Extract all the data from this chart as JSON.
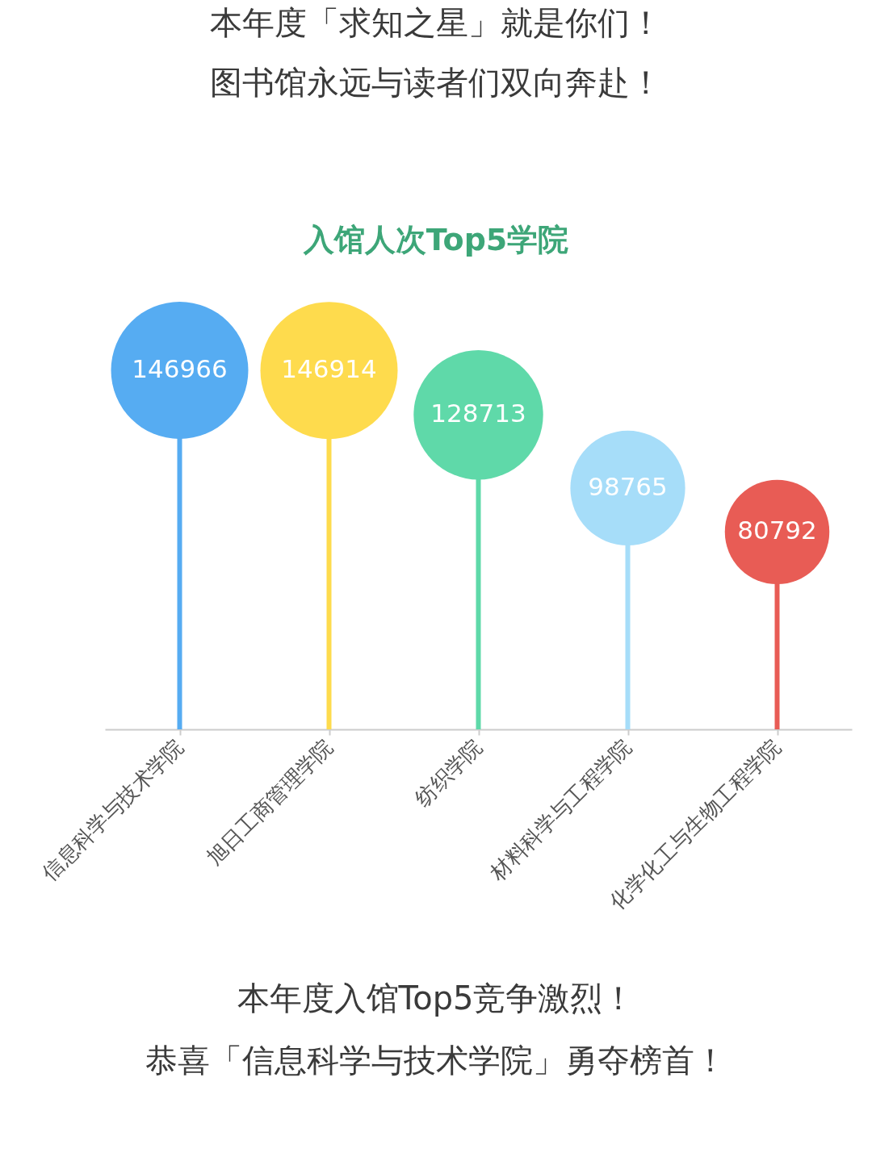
{
  "chart_data": {
    "type": "lollipop",
    "title": "入馆人次Top5学院",
    "categories": [
      "信息科学与技术学院",
      "旭日工商管理学院",
      "纺织学院",
      "材料科学与工程学院",
      "化学化工与生物工程学院"
    ],
    "values": [
      146966,
      146914,
      128713,
      98765,
      80792
    ],
    "sizes": [
      1,
      1,
      0.89,
      0.7,
      0.58
    ],
    "colors": [
      "#56acf2",
      "#fedb4d",
      "#5fd9a9",
      "#a6ddf9",
      "#e85c55"
    ],
    "data_labels": true,
    "annotations": [
      "本年度「求知之星」就是你们！",
      "图书馆永远与读者们双向奔赴！",
      "本年度入馆Top5竞争激烈！",
      "恭喜「信息科学与技术学院」勇夺榜首！"
    ]
  }
}
